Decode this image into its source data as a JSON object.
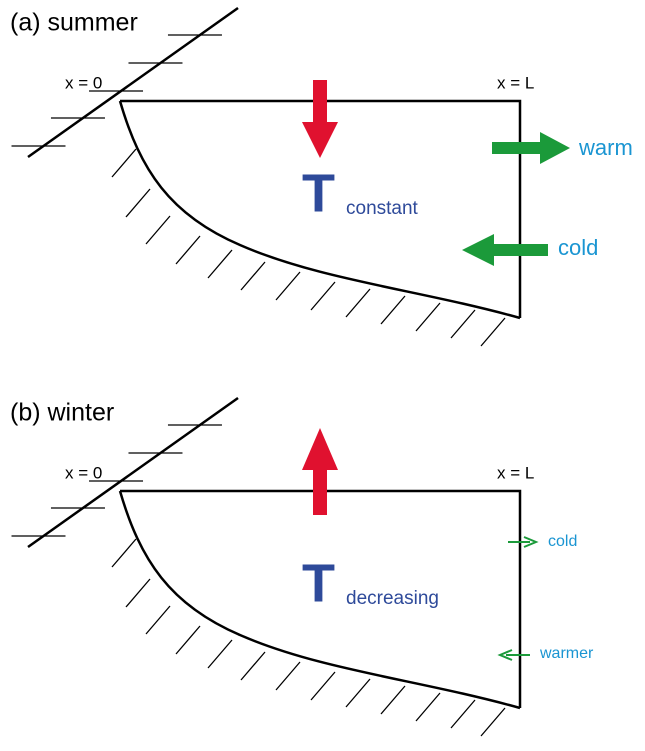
{
  "panels": [
    {
      "label": "(a) summer",
      "x0": "x = 0",
      "xL": "x = L",
      "T": "T",
      "T_sub": "constant",
      "upper_flow": "warm",
      "lower_flow": "cold"
    },
    {
      "label": "(b) winter",
      "x0": "x = 0",
      "xL": "x = L",
      "T": "T",
      "T_sub": "decreasing",
      "upper_flow": "cold",
      "lower_flow": "warmer"
    }
  ]
}
